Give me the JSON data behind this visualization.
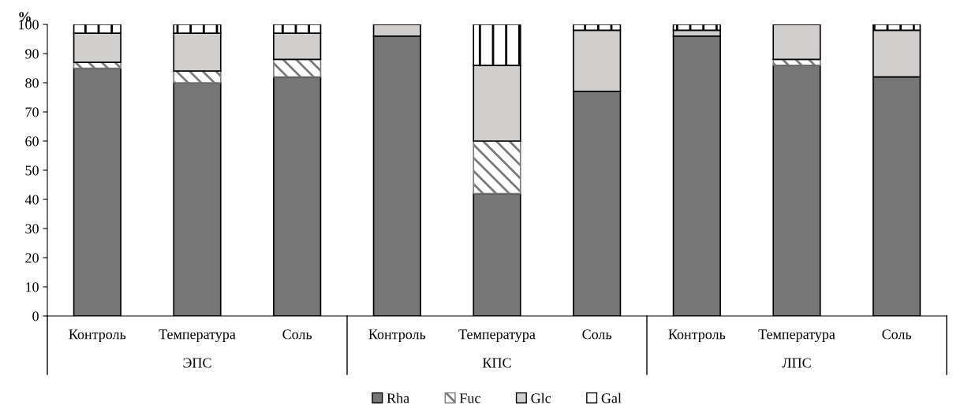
{
  "chart_data": {
    "type": "bar",
    "stacked": true,
    "ylabel": "%",
    "categories": [
      "Контроль",
      "Температура",
      "Соль",
      "Контроль",
      "Температура",
      "Соль",
      "Контроль",
      "Температура",
      "Соль"
    ],
    "series": [
      {
        "name": "Rha",
        "color": "#767676",
        "values": [
          85,
          80,
          82,
          96,
          42,
          77,
          96,
          86,
          82
        ]
      },
      {
        "name": "Fuc",
        "color": "#7a7a7a",
        "values": [
          2,
          4,
          6,
          0,
          18,
          0,
          0,
          2,
          0
        ]
      },
      {
        "name": "Glc",
        "color": "#d0cfcd",
        "values": [
          10,
          13,
          9,
          4,
          26,
          21,
          2,
          12,
          16
        ]
      },
      {
        "name": "Gal",
        "color": "#000000",
        "values": [
          3,
          3,
          3,
          0,
          14,
          2,
          2,
          0,
          2
        ]
      }
    ],
    "annotations": [
      "ЭПС",
      "КПС",
      "ЛПС"
    ],
    "ylim": [
      0,
      100
    ],
    "yticks": [
      0,
      10,
      20,
      30,
      40,
      50,
      60,
      70,
      80,
      90,
      100
    ],
    "grid": false,
    "legend": "bottom"
  }
}
